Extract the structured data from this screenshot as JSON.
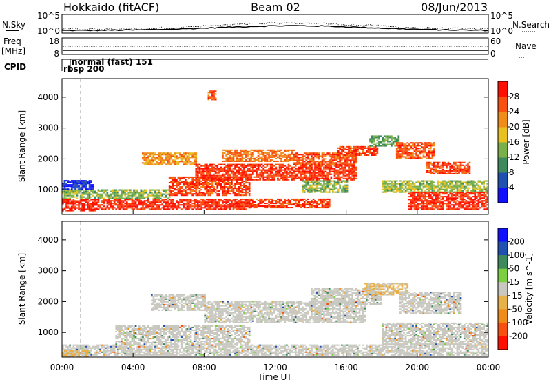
{
  "header": {
    "station": "Hokkaido (fitACF)",
    "beam": "Beam 02",
    "date": "08/Jun/2013"
  },
  "top_panels": {
    "nsky_label": "N.Sky",
    "nsky_ticks": [
      "10^5",
      "10^0"
    ],
    "nsearch_label": "N.Search",
    "nsearch_ticks": [
      "10^5",
      "10^0"
    ],
    "freq_label_line1": "Freq",
    "freq_label_line2": "[MHz]",
    "freq_ticks": [
      "18",
      "8"
    ],
    "nave_label": "Nave",
    "nave_ticks": [
      "60",
      "0"
    ],
    "cpid_label": "CPID",
    "cpid_mode1": "normal (fast) 151",
    "cpid_mode2": "rbsp 200"
  },
  "colors": {
    "power_scale": [
      "#1010ff",
      "#2050b0",
      "#3e8a5c",
      "#7ab04a",
      "#e8c020",
      "#f08c18",
      "#f85010",
      "#ff1000"
    ],
    "velocity_scale": [
      "#ff1000",
      "#f85010",
      "#f08c18",
      "#e8b048",
      "#c8c8c0",
      "#7ad040",
      "#3e8a5c",
      "#2050b0",
      "#1010ff"
    ],
    "ground_scatter": "#c8c8c0"
  },
  "chart_data": [
    {
      "type": "heatmap",
      "panel": "power",
      "ylabel": "Slant Range [km]",
      "yticks": [
        "1000",
        "2000",
        "3000",
        "4000"
      ],
      "ylim": [
        200,
        4600
      ],
      "xlim": [
        "00:00",
        "24:00"
      ],
      "colorbar_label": "Power [dB]",
      "colorbar_ticks": [
        "4",
        "8",
        "12",
        "16",
        "20",
        "24",
        "28"
      ],
      "colorbar_range": [
        0,
        32
      ],
      "dashed_marker_hour": 1.0,
      "regions": [
        {
          "t0": 0.0,
          "t1": 2.0,
          "r0": 300,
          "r1": 700,
          "level": 30
        },
        {
          "t0": 0.0,
          "t1": 6.0,
          "r0": 700,
          "r1": 1000,
          "level": 14
        },
        {
          "t0": 0.0,
          "t1": 1.8,
          "r0": 1000,
          "r1": 1300,
          "level": 4
        },
        {
          "t0": 2.0,
          "t1": 10.5,
          "r0": 350,
          "r1": 700,
          "level": 29
        },
        {
          "t0": 4.5,
          "t1": 7.5,
          "r0": 1800,
          "r1": 2200,
          "level": 22
        },
        {
          "t0": 6.0,
          "t1": 10.5,
          "r0": 800,
          "r1": 1400,
          "level": 27
        },
        {
          "t0": 7.5,
          "t1": 16.5,
          "r0": 1300,
          "r1": 1800,
          "level": 28
        },
        {
          "t0": 9.0,
          "t1": 13.0,
          "r0": 1900,
          "r1": 2300,
          "level": 24
        },
        {
          "t0": 13.0,
          "t1": 16.5,
          "r0": 1800,
          "r1": 2200,
          "level": 26
        },
        {
          "t0": 15.5,
          "t1": 17.8,
          "r0": 2100,
          "r1": 2400,
          "level": 27
        },
        {
          "t0": 17.3,
          "t1": 19.0,
          "r0": 2400,
          "r1": 2750,
          "level": 12
        },
        {
          "t0": 18.8,
          "t1": 21.0,
          "r0": 2000,
          "r1": 2500,
          "level": 26
        },
        {
          "t0": 20.5,
          "t1": 23.0,
          "r0": 1500,
          "r1": 1900,
          "level": 27
        },
        {
          "t0": 13.5,
          "t1": 16.0,
          "r0": 900,
          "r1": 1300,
          "level": 14
        },
        {
          "t0": 18.0,
          "t1": 24.0,
          "r0": 900,
          "r1": 1300,
          "level": 15
        },
        {
          "t0": 19.5,
          "t1": 24.0,
          "r0": 350,
          "r1": 900,
          "level": 29
        },
        {
          "t0": 10.5,
          "t1": 15.0,
          "r0": 400,
          "r1": 700,
          "level": 27
        },
        {
          "t0": 8.2,
          "t1": 8.6,
          "r0": 3900,
          "r1": 4200,
          "level": 26
        }
      ]
    },
    {
      "type": "heatmap",
      "panel": "velocity",
      "ylabel": "Slant Range [km]",
      "yticks": [
        "1000",
        "2000",
        "3000",
        "4000"
      ],
      "ylim": [
        200,
        4600
      ],
      "xlabel": "Time UT",
      "xticks": [
        "00:00",
        "04:00",
        "08:00",
        "12:00",
        "16:00",
        "20:00",
        "00:00"
      ],
      "xlim": [
        "00:00",
        "24:00"
      ],
      "colorbar_label": "Velocity [m s^-1]",
      "colorbar_ticks": [
        "200",
        "100",
        "50",
        "15",
        "-15",
        "-50",
        "-100",
        "-200"
      ],
      "dashed_marker_hour": 1.0,
      "regions": [
        {
          "t0": 0.0,
          "t1": 24.0,
          "r0": 250,
          "r1": 600,
          "kind": "ground"
        },
        {
          "t0": 3.0,
          "t1": 10.5,
          "r0": 600,
          "r1": 1200,
          "kind": "ground"
        },
        {
          "t0": 5.0,
          "t1": 8.0,
          "r0": 1700,
          "r1": 2200,
          "kind": "ground"
        },
        {
          "t0": 8.0,
          "t1": 17.0,
          "r0": 1300,
          "r1": 2000,
          "kind": "ground"
        },
        {
          "t0": 14.0,
          "t1": 18.0,
          "r0": 1900,
          "r1": 2400,
          "kind": "ground"
        },
        {
          "t0": 17.0,
          "t1": 19.5,
          "r0": 2200,
          "r1": 2600,
          "kind": "velocity",
          "v": 30
        },
        {
          "t0": 19.0,
          "t1": 22.5,
          "r0": 1600,
          "r1": 2300,
          "kind": "ground"
        },
        {
          "t0": 18.0,
          "t1": 24.0,
          "r0": 600,
          "r1": 1300,
          "kind": "ground"
        },
        {
          "t0": 0.0,
          "t1": 1.5,
          "r0": 200,
          "r1": 400,
          "kind": "velocity",
          "v": 40
        }
      ]
    }
  ]
}
